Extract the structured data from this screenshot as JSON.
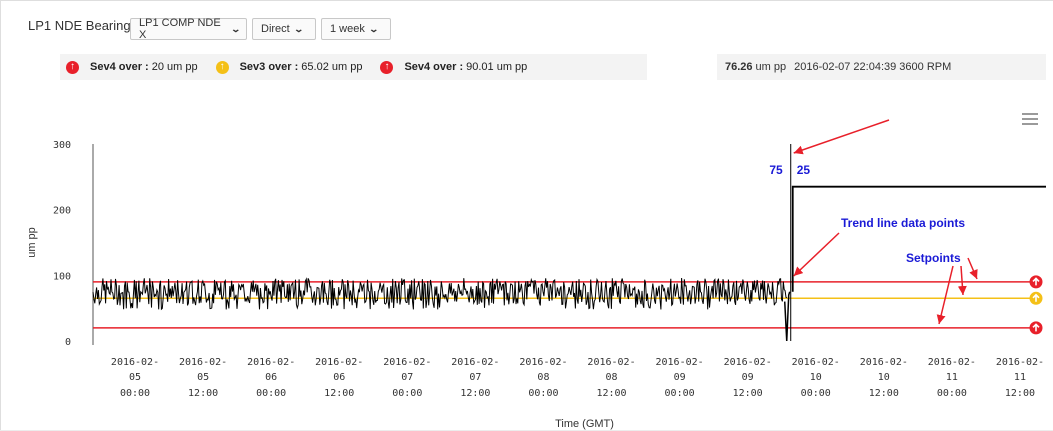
{
  "header": {
    "title": "LP1 NDE Bearing",
    "point_select": "LP1 COMP NDE X",
    "direction_select": "Direct",
    "range_select": "1 week"
  },
  "alarms": [
    {
      "label": "Sev4 over :",
      "value": "20 um pp",
      "icon": "alarm-up-red-icon",
      "color": "#e8202a"
    },
    {
      "label": "Sev3 over :",
      "value": "65.02 um pp",
      "icon": "alarm-up-yellow-icon",
      "color": "#f4c017"
    },
    {
      "label": "Sev4 over :",
      "value": "90.01 um pp",
      "icon": "alarm-up-red-icon",
      "color": "#e8202a"
    }
  ],
  "cursor_readout": {
    "value": "76.26",
    "unit": "um pp",
    "meta": "2016-02-07 22:04:39 3600 RPM"
  },
  "chart_data": {
    "type": "line",
    "xlabel": "Time (GMT)",
    "ylabel": "um pp",
    "ylim": [
      0,
      300
    ],
    "yticks": [
      0,
      100,
      200,
      300
    ],
    "xticks": [
      [
        "2016-02-",
        "05",
        "00:00"
      ],
      [
        "2016-02-",
        "05",
        "12:00"
      ],
      [
        "2016-02-",
        "06",
        "00:00"
      ],
      [
        "2016-02-",
        "06",
        "12:00"
      ],
      [
        "2016-02-",
        "07",
        "00:00"
      ],
      [
        "2016-02-",
        "07",
        "12:00"
      ],
      [
        "2016-02-",
        "08",
        "00:00"
      ],
      [
        "2016-02-",
        "08",
        "12:00"
      ],
      [
        "2016-02-",
        "09",
        "00:00"
      ],
      [
        "2016-02-",
        "09",
        "12:00"
      ],
      [
        "2016-02-",
        "10",
        "00:00"
      ],
      [
        "2016-02-",
        "10",
        "12:00"
      ],
      [
        "2016-02-",
        "11",
        "00:00"
      ],
      [
        "2016-02-",
        "11",
        "12:00"
      ]
    ],
    "x_range": [
      "2016-02-04 21:00",
      "2016-02-11 21:00"
    ],
    "series": [
      {
        "color": "#000000",
        "segments": [
          {
            "from": "2016-02-04 21:00",
            "to": "2016-02-10 00:00",
            "min": 48,
            "max": 92,
            "typical": 75
          },
          {
            "from": "2016-02-10 00:00",
            "to": "2016-02-10 00:00",
            "min": 0,
            "max": 75
          },
          {
            "from": "2016-02-10 00:00",
            "to": "2016-02-10 00:30",
            "value": 235
          },
          {
            "from": "2016-02-10 00:30",
            "to": "2016-02-11 21:00",
            "value": 235
          }
        ]
      }
    ],
    "setpoints": [
      {
        "value": 90.01,
        "color": "#e8202a"
      },
      {
        "value": 65.02,
        "color": "#f4c017"
      },
      {
        "value": 20,
        "color": "#e8202a"
      }
    ],
    "marker": {
      "x": "2016-02-10 00:00",
      "left_label": "75",
      "right_label": "25"
    },
    "annotations": [
      {
        "text": "Trend line data points",
        "color": "#1a1ad6"
      },
      {
        "text": "Setpoints",
        "color": "#1a1ad6"
      }
    ]
  }
}
